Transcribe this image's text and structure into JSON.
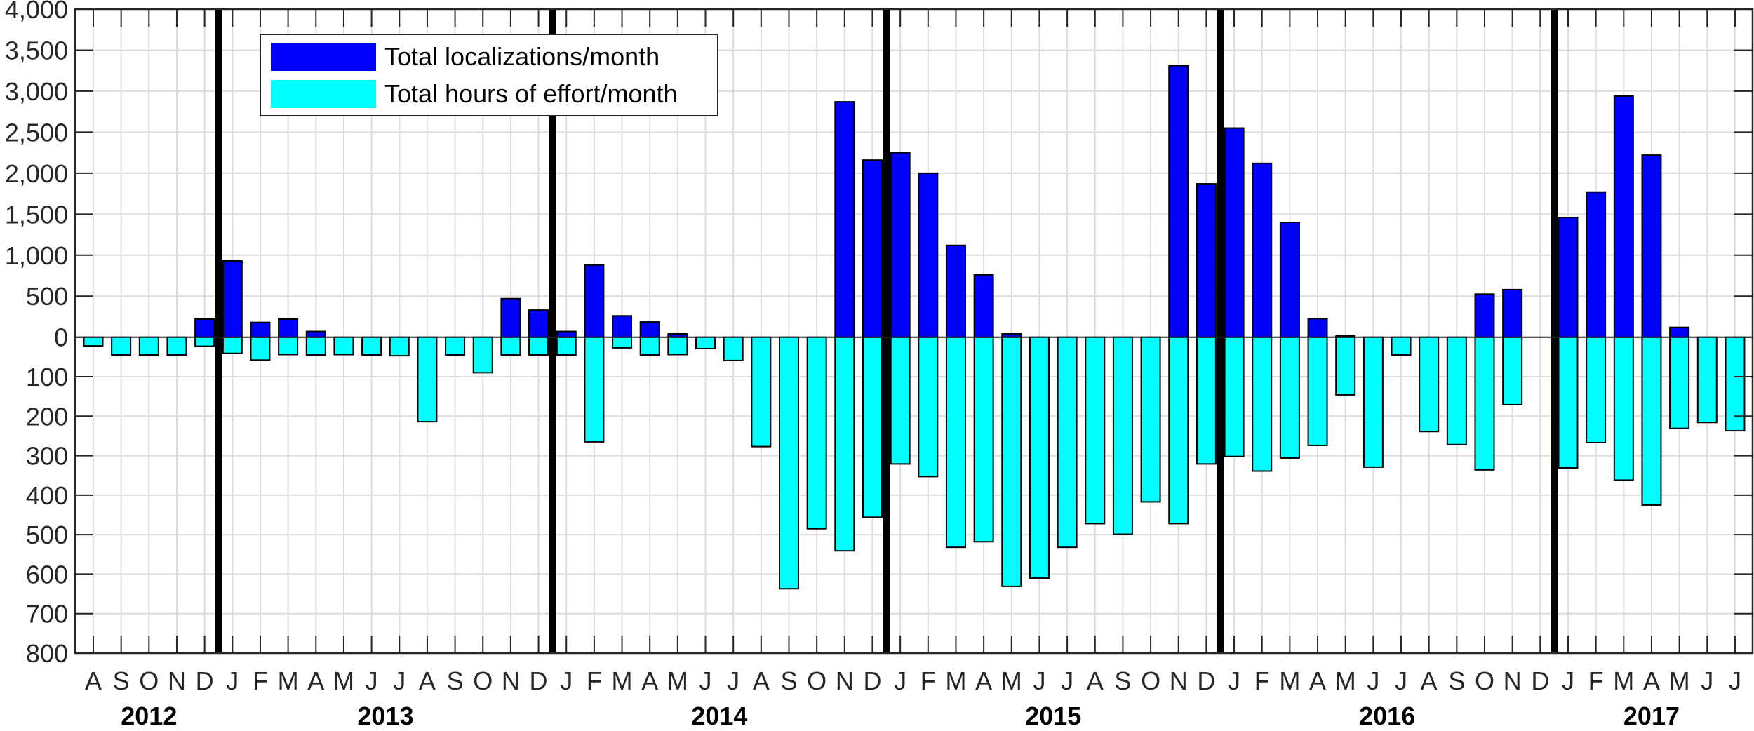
{
  "chart_data": {
    "type": "bar",
    "title": "",
    "xlabel": "",
    "ylabel": "",
    "layout": {
      "diverging": true,
      "positive_axis": {
        "series": "Total localizations/month",
        "range": [
          0,
          4000
        ],
        "ticks": [
          0,
          500,
          1000,
          1500,
          2000,
          2500,
          3000,
          3500,
          4000
        ],
        "tick_labels": [
          "0",
          "500",
          "1,000",
          "1,500",
          "2,000",
          "2,500",
          "3,000",
          "3,500",
          "4,000"
        ]
      },
      "negative_axis": {
        "series": "Total hours of effort/month",
        "range": [
          0,
          800
        ],
        "ticks": [
          100,
          200,
          300,
          400,
          500,
          600,
          700,
          800
        ],
        "tick_labels": [
          "100",
          "200",
          "300",
          "400",
          "500",
          "600",
          "700",
          "800"
        ]
      },
      "grid": true,
      "legend_position": "upper-left-inside",
      "year_separators_after_december": true
    },
    "years": [
      {
        "label": "2012",
        "start_index": 0,
        "end_index": 4
      },
      {
        "label": "2013",
        "start_index": 5,
        "end_index": 16
      },
      {
        "label": "2014",
        "start_index": 17,
        "end_index": 28
      },
      {
        "label": "2015",
        "start_index": 29,
        "end_index": 40
      },
      {
        "label": "2016",
        "start_index": 41,
        "end_index": 52
      },
      {
        "label": "2017",
        "start_index": 53,
        "end_index": 59
      }
    ],
    "categories": [
      "A",
      "S",
      "O",
      "N",
      "D",
      "J",
      "F",
      "M",
      "A",
      "M",
      "J",
      "J",
      "A",
      "S",
      "O",
      "N",
      "D",
      "J",
      "F",
      "M",
      "A",
      "M",
      "J",
      "J",
      "A",
      "S",
      "O",
      "N",
      "D",
      "J",
      "F",
      "M",
      "A",
      "M",
      "J",
      "J",
      "A",
      "S",
      "O",
      "N",
      "D",
      "J",
      "F",
      "M",
      "A",
      "M",
      "J",
      "J",
      "A",
      "S",
      "O",
      "N",
      "D",
      "J",
      "F",
      "M",
      "A",
      "M",
      "J",
      "J"
    ],
    "series": [
      {
        "name": "Total localizations/month",
        "color": "#0000ff",
        "values": [
          0,
          0,
          0,
          0,
          220,
          930,
          180,
          220,
          70,
          0,
          0,
          0,
          0,
          0,
          0,
          470,
          330,
          70,
          880,
          260,
          185,
          40,
          0,
          0,
          0,
          0,
          0,
          2870,
          2160,
          2250,
          2000,
          1120,
          760,
          40,
          0,
          0,
          0,
          0,
          0,
          3310,
          1870,
          2550,
          2120,
          1400,
          225,
          15,
          0,
          0,
          0,
          0,
          525,
          580,
          0,
          1460,
          1770,
          2940,
          2220,
          120,
          0,
          0
        ]
      },
      {
        "name": "Total hours of effort/month",
        "color": "#00ffff",
        "values": [
          22,
          45,
          45,
          45,
          23,
          41,
          58,
          44,
          45,
          44,
          45,
          47,
          214,
          45,
          90,
          45,
          45,
          45,
          265,
          27,
          45,
          44,
          29,
          59,
          277,
          637,
          485,
          541,
          456,
          321,
          353,
          532,
          518,
          631,
          610,
          532,
          472,
          499,
          417,
          472,
          321,
          302,
          339,
          306,
          274,
          146,
          329,
          45,
          239,
          272,
          336,
          171,
          0,
          331,
          267,
          362,
          425,
          231,
          216,
          237
        ]
      }
    ]
  },
  "legend": {
    "items": [
      {
        "label": "Total localizations/month",
        "color": "#0000ff"
      },
      {
        "label": "Total hours of effort/month",
        "color": "#00ffff"
      }
    ]
  },
  "colors": {
    "axis": "#262626",
    "grid": "#dcdcdc",
    "separator": "#000000",
    "bar_edge": "#000000"
  }
}
